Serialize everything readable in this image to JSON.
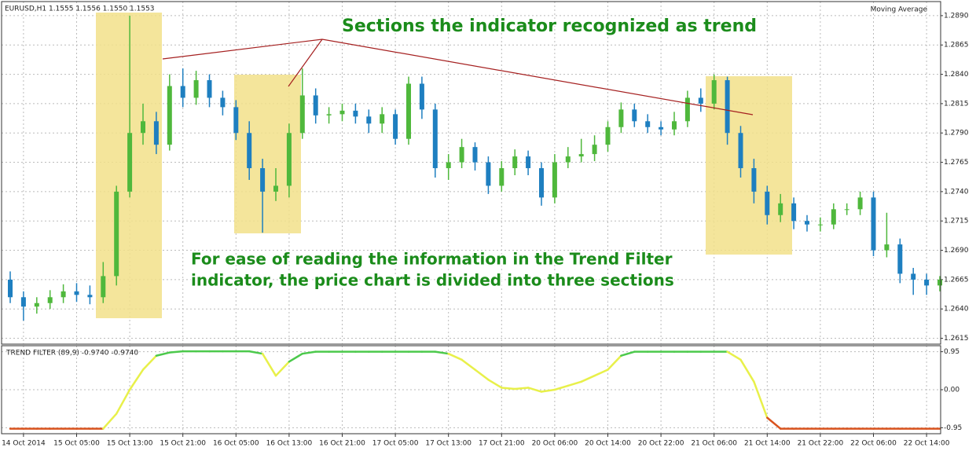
{
  "header": {
    "symbol": "EURUSD,H1  1.1555 1.1556 1.1550 1.1553",
    "indicator_name": "Moving Average",
    "panel_name": "TREND FILTER (89,9) -0.9740 -0.9740"
  },
  "annotations": {
    "top": "Sections the indicator recognized as trend",
    "middle_line1": "For ease of reading the information in the Trend Filter",
    "middle_line2": "indicator, the price chart is divided into three sections"
  },
  "chart_data": [
    {
      "type": "candlestick",
      "up_color": "#4fb83c",
      "down_color": "#1e7fc0",
      "grid": true,
      "ylim": [
        1.261,
        1.2902
      ],
      "yticks": [
        {
          "value": 1.289,
          "label": "1.2890"
        },
        1.2865,
        {
          "value": 1.284,
          "label": "1.2840"
        },
        1.2815,
        {
          "value": 1.279,
          "label": "1.2790"
        },
        1.2765,
        {
          "value": 1.274,
          "label": "1.2740"
        },
        1.2715,
        {
          "value": 1.269,
          "label": "1.2690"
        },
        1.2665,
        {
          "value": 1.264,
          "label": "1.2640"
        },
        1.2615
      ],
      "xticks": [
        {
          "value": 1,
          "label": "14 Oct 2014"
        },
        {
          "value": 5,
          "label": "15 Oct 05:00"
        },
        {
          "value": 9,
          "label": "15 Oct 13:00"
        },
        {
          "value": 13,
          "label": "15 Oct 21:00"
        },
        {
          "value": 17,
          "label": "16 Oct 05:00"
        },
        {
          "value": 21,
          "label": "16 Oct 13:00"
        },
        {
          "value": 25,
          "label": "16 Oct 21:00"
        },
        {
          "value": 29,
          "label": "17 Oct 05:00"
        },
        {
          "value": 33,
          "label": "17 Oct 13:00"
        },
        {
          "value": 37,
          "label": "17 Oct 21:00"
        },
        {
          "value": 41,
          "label": "20 Oct 06:00"
        },
        {
          "value": 45,
          "label": "20 Oct 14:00"
        },
        {
          "value": 49,
          "label": "20 Oct 22:00"
        },
        {
          "value": 53,
          "label": "21 Oct 06:00"
        },
        {
          "value": 57,
          "label": "21 Oct 14:00"
        },
        {
          "value": 61,
          "label": "21 Oct 22:00"
        },
        {
          "value": 65,
          "label": "22 Oct 06:00"
        },
        {
          "value": 69,
          "label": "22 Oct 14:00"
        }
      ],
      "open": [
        1.2665,
        1.265,
        1.2642,
        1.2645,
        1.265,
        1.2655,
        1.2652,
        1.265,
        1.2668,
        1.274,
        1.279,
        1.28,
        1.278,
        1.283,
        1.282,
        1.2835,
        1.282,
        1.2812,
        1.279,
        1.276,
        1.274,
        1.2745,
        1.279,
        1.2822,
        1.2805,
        1.2806,
        1.2809,
        1.2804,
        1.2798,
        1.2806,
        1.2785,
        1.2832,
        1.281,
        1.276,
        1.2765,
        1.2778,
        1.2765,
        1.2745,
        1.276,
        1.277,
        1.276,
        1.2735,
        1.2765,
        1.277,
        1.2772,
        1.278,
        1.2795,
        1.281,
        1.28,
        1.2795,
        1.2793,
        1.28,
        1.282,
        1.2815,
        1.2835,
        1.279,
        1.276,
        1.274,
        1.272,
        1.273,
        1.2715,
        1.2712,
        1.2712,
        1.2725,
        1.2725,
        1.2735,
        1.269,
        1.2695,
        1.267,
        1.2665,
        1.266
      ],
      "high": [
        1.2672,
        1.2655,
        1.265,
        1.2656,
        1.2661,
        1.2662,
        1.266,
        1.268,
        1.2745,
        1.289,
        1.2815,
        1.2808,
        1.284,
        1.2845,
        1.2843,
        1.284,
        1.2826,
        1.2818,
        1.28,
        1.2768,
        1.276,
        1.2798,
        1.2845,
        1.2828,
        1.2812,
        1.2815,
        1.2815,
        1.281,
        1.2812,
        1.281,
        1.2838,
        1.2838,
        1.2815,
        1.2772,
        1.2785,
        1.2782,
        1.277,
        1.2766,
        1.2776,
        1.2775,
        1.2765,
        1.2772,
        1.2778,
        1.2785,
        1.2788,
        1.28,
        1.2816,
        1.2815,
        1.2806,
        1.28,
        1.2808,
        1.2826,
        1.2828,
        1.284,
        1.2838,
        1.2796,
        1.2768,
        1.2745,
        1.2738,
        1.2735,
        1.272,
        1.2718,
        1.273,
        1.273,
        1.274,
        1.274,
        1.2722,
        1.27,
        1.2675,
        1.267,
        1.2668
      ],
      "low": [
        1.2645,
        1.263,
        1.2636,
        1.264,
        1.2645,
        1.2646,
        1.2644,
        1.2645,
        1.266,
        1.2735,
        1.278,
        1.2772,
        1.2775,
        1.2812,
        1.2814,
        1.2812,
        1.2805,
        1.2784,
        1.275,
        1.2705,
        1.2732,
        1.2735,
        1.2785,
        1.2798,
        1.2798,
        1.28,
        1.2798,
        1.279,
        1.279,
        1.278,
        1.278,
        1.2802,
        1.2752,
        1.275,
        1.276,
        1.2758,
        1.2738,
        1.274,
        1.2754,
        1.2754,
        1.2728,
        1.273,
        1.276,
        1.2765,
        1.2766,
        1.2774,
        1.279,
        1.2795,
        1.279,
        1.2788,
        1.2788,
        1.2795,
        1.2808,
        1.281,
        1.278,
        1.2752,
        1.273,
        1.2712,
        1.2714,
        1.2708,
        1.2706,
        1.2706,
        1.2708,
        1.272,
        1.272,
        1.2685,
        1.2684,
        1.2662,
        1.2652,
        1.2652,
        1.2655
      ],
      "close": [
        1.265,
        1.2642,
        1.2645,
        1.265,
        1.2655,
        1.2652,
        1.265,
        1.2668,
        1.274,
        1.279,
        1.28,
        1.278,
        1.283,
        1.282,
        1.2835,
        1.282,
        1.2812,
        1.279,
        1.276,
        1.274,
        1.2745,
        1.279,
        1.2822,
        1.2805,
        1.2806,
        1.2809,
        1.2804,
        1.2798,
        1.2806,
        1.2785,
        1.2832,
        1.281,
        1.276,
        1.2765,
        1.2778,
        1.2765,
        1.2745,
        1.276,
        1.277,
        1.276,
        1.2735,
        1.2765,
        1.277,
        1.2772,
        1.278,
        1.2795,
        1.281,
        1.28,
        1.2795,
        1.2793,
        1.28,
        1.282,
        1.2815,
        1.2835,
        1.279,
        1.276,
        1.274,
        1.272,
        1.273,
        1.2715,
        1.2712,
        1.2712,
        1.2725,
        1.2725,
        1.2735,
        1.269,
        1.2695,
        1.267,
        1.2665,
        1.266,
        1.2665
      ]
    },
    {
      "type": "line",
      "grid": true,
      "ylim": [
        -1.1,
        1.1
      ],
      "yticks": [
        0.95,
        {
          "value": 0,
          "label": "0.00"
        },
        -0.95
      ],
      "values": [
        -0.974,
        -0.974,
        -0.974,
        -0.974,
        -0.974,
        -0.974,
        -0.974,
        -0.974,
        -0.6,
        0.0,
        0.5,
        0.85,
        0.93,
        0.96,
        0.96,
        0.96,
        0.96,
        0.96,
        0.96,
        0.9,
        0.35,
        0.7,
        0.9,
        0.95,
        0.95,
        0.95,
        0.95,
        0.95,
        0.95,
        0.95,
        0.95,
        0.95,
        0.95,
        0.9,
        0.75,
        0.5,
        0.25,
        0.05,
        0.02,
        0.05,
        -0.05,
        0.0,
        0.1,
        0.2,
        0.35,
        0.5,
        0.85,
        0.95,
        0.95,
        0.95,
        0.95,
        0.95,
        0.95,
        0.95,
        0.95,
        0.75,
        0.2,
        -0.7,
        -0.974,
        -0.974,
        -0.974,
        -0.974,
        -0.974,
        -0.974,
        -0.974,
        -0.974,
        -0.974,
        -0.974,
        -0.974,
        -0.974,
        -0.974
      ],
      "colors": [
        "#d9531e",
        "#d9531e",
        "#d9531e",
        "#d9531e",
        "#d9531e",
        "#d9531e",
        "#d9531e",
        "#d9531e",
        "#e8f04a",
        "#e8f04a",
        "#e8f04a",
        "#e8f04a",
        "#4cc94c",
        "#4cc94c",
        "#4cc94c",
        "#4cc94c",
        "#4cc94c",
        "#4cc94c",
        "#4cc94c",
        "#4cc94c",
        "#e8f04a",
        "#e8f04a",
        "#4cc94c",
        "#4cc94c",
        "#4cc94c",
        "#4cc94c",
        "#4cc94c",
        "#4cc94c",
        "#4cc94c",
        "#4cc94c",
        "#4cc94c",
        "#4cc94c",
        "#4cc94c",
        "#4cc94c",
        "#e8f04a",
        "#e8f04a",
        "#e8f04a",
        "#e8f04a",
        "#e8f04a",
        "#e8f04a",
        "#e8f04a",
        "#e8f04a",
        "#e8f04a",
        "#e8f04a",
        "#e8f04a",
        "#e8f04a",
        "#e8f04a",
        "#4cc94c",
        "#4cc94c",
        "#4cc94c",
        "#4cc94c",
        "#4cc94c",
        "#4cc94c",
        "#4cc94c",
        "#4cc94c",
        "#e8f04a",
        "#e8f04a",
        "#e8f04a",
        "#d9531e",
        "#d9531e",
        "#d9531e",
        "#d9531e",
        "#d9531e",
        "#d9531e",
        "#d9531e",
        "#d9531e",
        "#d9531e",
        "#d9531e",
        "#d9531e",
        "#d9531e",
        "#d9531e"
      ]
    }
  ]
}
